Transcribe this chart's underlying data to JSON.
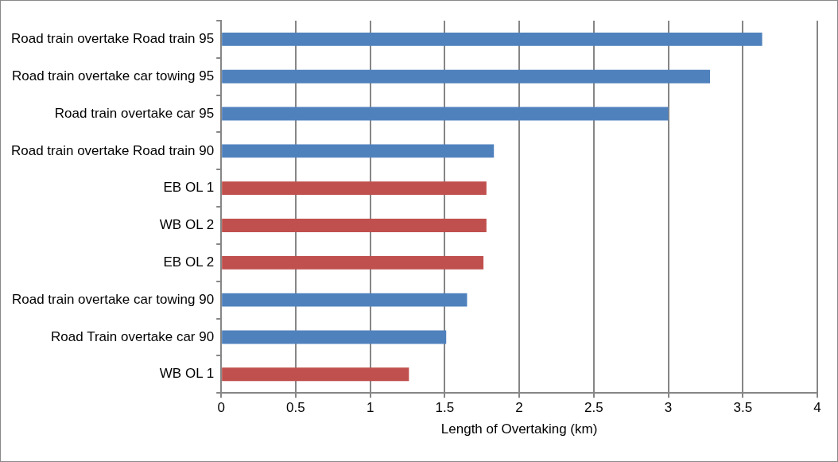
{
  "chart_data": {
    "type": "bar",
    "orientation": "horizontal",
    "xlabel": "Length of Overtaking (km)",
    "categories": [
      "Road train overtake Road train 95",
      "Road train overtake car towing 95",
      "Road train overtake car 95",
      "Road train overtake Road train 90",
      "EB OL 1",
      "WB OL 2",
      "EB OL 2",
      "Road train overtake car towing 90",
      "Road Train overtake car 90",
      "WB OL 1"
    ],
    "values": [
      3.63,
      3.28,
      3.0,
      1.83,
      1.78,
      1.78,
      1.76,
      1.65,
      1.51,
      1.26
    ],
    "colors": [
      "#4f81bd",
      "#4f81bd",
      "#4f81bd",
      "#4f81bd",
      "#c0504d",
      "#c0504d",
      "#c0504d",
      "#4f81bd",
      "#4f81bd",
      "#c0504d"
    ],
    "xlim": [
      0,
      4
    ],
    "xticks": [
      0,
      0.5,
      1,
      1.5,
      2,
      2.5,
      3,
      3.5,
      4
    ],
    "grid": "x",
    "legend": false
  }
}
